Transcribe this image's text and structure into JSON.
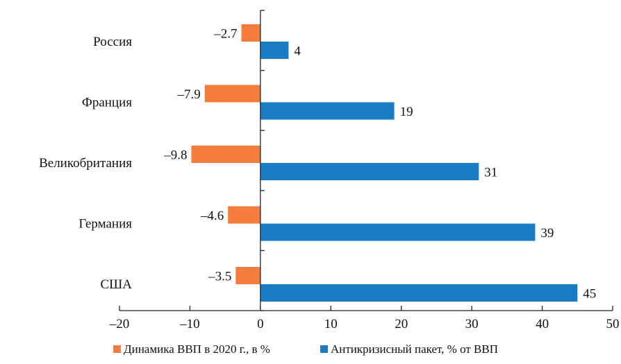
{
  "chart_data": {
    "type": "bar",
    "orientation": "horizontal",
    "categories": [
      "Россия",
      "Франция",
      "Великобритания",
      "Германия",
      "США"
    ],
    "series": [
      {
        "name": "Динамика ВВП в 2020 г., в %",
        "color": "#F47C3C",
        "values": [
          -2.7,
          -7.9,
          -9.8,
          -4.6,
          -3.5
        ],
        "labels": [
          "–2.7",
          "–7.9",
          "–9.8",
          "–4.6",
          "–3.5"
        ]
      },
      {
        "name": "Антикризисный пакет, % от ВВП",
        "color": "#1A7CC4",
        "values": [
          4,
          19,
          31,
          39,
          45
        ],
        "labels": [
          "4",
          "19",
          "31",
          "39",
          "45"
        ]
      }
    ],
    "xlim": [
      -20,
      50
    ],
    "xticks": [
      -20,
      -10,
      0,
      10,
      20,
      30,
      40,
      50
    ],
    "xtick_labels": [
      "–20",
      "–10",
      "0",
      "10",
      "20",
      "30",
      "40",
      "50"
    ],
    "grid": false,
    "legend_position": "bottom-center"
  }
}
